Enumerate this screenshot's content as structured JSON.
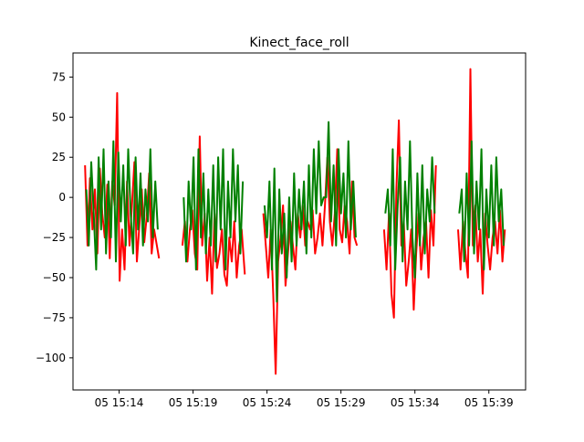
{
  "chart_data": {
    "type": "line",
    "title": "Kinect_face_roll",
    "xlabel": "",
    "ylabel": "",
    "x_axis_type": "time",
    "x_ticks": [
      "05 15:14",
      "05 15:19",
      "05 15:24",
      "05 15:29",
      "05 15:34",
      "05 15:39"
    ],
    "y_ticks": [
      75,
      50,
      25,
      0,
      -25,
      -50,
      -75,
      -100
    ],
    "ylim": [
      -120,
      90
    ],
    "xlim": [
      "15:10:53",
      "15:41:29"
    ],
    "grid": false,
    "legend": "none",
    "series": [
      {
        "color": "#ff0000",
        "segments": [
          {
            "x": [
              "15:11:42",
              "15:11:52",
              "15:12:02",
              "15:12:12",
              "15:12:22",
              "15:12:32",
              "15:12:42",
              "15:12:52",
              "15:13:02",
              "15:13:12",
              "15:13:22",
              "15:13:32",
              "15:13:42",
              "15:13:52",
              "15:14:02",
              "15:14:12",
              "15:14:22",
              "15:14:32",
              "15:14:42",
              "15:14:52",
              "15:15:02",
              "15:15:12",
              "15:15:22",
              "15:15:32",
              "15:15:42",
              "15:15:52",
              "15:16:02",
              "15:16:12",
              "15:16:22",
              "15:16:42"
            ],
            "y": [
              20,
              -30,
              12,
              -20,
              5,
              -35,
              18,
              -10,
              -25,
              8,
              -38,
              10,
              -5,
              65,
              -52,
              -20,
              -45,
              10,
              -30,
              -5,
              22,
              -40,
              -18,
              5,
              -28,
              -12,
              15,
              -35,
              -20,
              -38
            ]
          },
          {
            "x": [
              "15:18:17",
              "15:18:27",
              "15:18:37",
              "15:18:47",
              "15:18:57",
              "15:19:07",
              "15:19:17",
              "15:19:27",
              "15:19:37",
              "15:19:47",
              "15:19:57",
              "15:20:07",
              "15:20:17",
              "15:20:27",
              "15:20:37",
              "15:20:47",
              "15:20:57",
              "15:21:07",
              "15:21:17",
              "15:21:27",
              "15:21:37",
              "15:21:47",
              "15:21:57",
              "15:22:07",
              "15:22:17",
              "15:22:30"
            ],
            "y": [
              -30,
              -15,
              -40,
              -20,
              -8,
              -35,
              -45,
              38,
              -30,
              -10,
              -52,
              -25,
              -60,
              -10,
              -44,
              -35,
              -20,
              -48,
              -55,
              -25,
              -40,
              -15,
              -50,
              -30,
              -20,
              -48
            ]
          },
          {
            "x": [
              "15:23:45",
              "15:23:55",
              "15:24:05",
              "15:24:15",
              "15:24:25",
              "15:24:35",
              "15:24:45",
              "15:24:55",
              "15:25:05",
              "15:25:15",
              "15:25:25",
              "15:25:35",
              "15:25:45",
              "15:25:55",
              "15:26:05",
              "15:26:15",
              "15:26:25",
              "15:26:35",
              "15:26:45",
              "15:26:55",
              "15:27:05",
              "15:27:15",
              "15:27:25",
              "15:27:35",
              "15:27:45",
              "15:27:55",
              "15:28:05",
              "15:28:15",
              "15:28:25",
              "15:28:35",
              "15:28:45",
              "15:28:55",
              "15:29:05",
              "15:29:15",
              "15:29:25",
              "15:29:35",
              "15:29:45",
              "15:29:55",
              "15:30:05"
            ],
            "y": [
              -10,
              -30,
              -50,
              -20,
              -60,
              -110,
              -40,
              -25,
              -5,
              -55,
              -35,
              -15,
              -30,
              -45,
              -10,
              -25,
              -5,
              -30,
              -15,
              -20,
              -8,
              -35,
              -25,
              -10,
              -30,
              -5,
              25,
              -15,
              -30,
              -10,
              30,
              -20,
              -28,
              -5,
              -15,
              -35,
              10,
              -25,
              -30
            ]
          },
          {
            "x": [
              "15:31:55",
              "15:32:05",
              "15:32:15",
              "15:32:25",
              "15:32:35",
              "15:32:45",
              "15:32:55",
              "15:33:05",
              "15:33:15",
              "15:33:25",
              "15:33:35",
              "15:33:45",
              "15:33:55",
              "15:34:05",
              "15:34:15",
              "15:34:25",
              "15:34:35",
              "15:34:45",
              "15:34:55",
              "15:35:05",
              "15:35:15",
              "15:35:25"
            ],
            "y": [
              -20,
              -45,
              -10,
              -60,
              -75,
              5,
              48,
              -30,
              -15,
              -55,
              -40,
              -20,
              -70,
              -35,
              -10,
              -45,
              -25,
              -15,
              -50,
              -8,
              -30,
              20
            ]
          },
          {
            "x": [
              "15:36:55",
              "15:37:05",
              "15:37:15",
              "15:37:25",
              "15:37:35",
              "15:37:45",
              "15:37:55",
              "15:38:05",
              "15:38:15",
              "15:38:25",
              "15:38:35",
              "15:38:45",
              "15:38:55",
              "15:39:05",
              "15:39:15",
              "15:39:25",
              "15:39:35",
              "15:39:45",
              "15:39:55",
              "15:40:05"
            ],
            "y": [
              -20,
              -45,
              -15,
              -35,
              -50,
              80,
              -30,
              -5,
              -40,
              -20,
              -60,
              -10,
              -30,
              -45,
              -25,
              -15,
              -35,
              -8,
              -40,
              -20
            ]
          }
        ]
      },
      {
        "color": "#008000",
        "segments": [
          {
            "x": [
              "15:11:47",
              "15:11:57",
              "15:12:07",
              "15:12:17",
              "15:12:27",
              "15:12:37",
              "15:12:47",
              "15:12:57",
              "15:13:07",
              "15:13:17",
              "15:13:27",
              "15:13:37",
              "15:13:47",
              "15:13:57",
              "15:14:07",
              "15:14:17",
              "15:14:27",
              "15:14:37",
              "15:14:47",
              "15:14:57",
              "15:15:07",
              "15:15:17",
              "15:15:27",
              "15:15:37",
              "15:15:47",
              "15:15:57",
              "15:16:07",
              "15:16:17",
              "15:16:27",
              "15:16:37"
            ],
            "y": [
              5,
              -30,
              22,
              -10,
              -45,
              25,
              -20,
              30,
              -35,
              10,
              -25,
              35,
              -40,
              28,
              -15,
              20,
              -30,
              30,
              -10,
              -35,
              25,
              -20,
              15,
              -30,
              5,
              -15,
              30,
              -25,
              10,
              -20
            ]
          },
          {
            "x": [
              "15:18:22",
              "15:18:32",
              "15:18:42",
              "15:18:52",
              "15:19:02",
              "15:19:12",
              "15:19:22",
              "15:19:32",
              "15:19:42",
              "15:19:52",
              "15:20:02",
              "15:20:12",
              "15:20:22",
              "15:20:32",
              "15:20:42",
              "15:20:52",
              "15:21:02",
              "15:21:12",
              "15:21:22",
              "15:21:32",
              "15:21:42",
              "15:21:52",
              "15:22:02",
              "15:22:12",
              "15:22:22"
            ],
            "y": [
              0,
              -40,
              10,
              -20,
              25,
              -45,
              30,
              -25,
              15,
              -35,
              5,
              -30,
              20,
              -40,
              25,
              -20,
              30,
              -45,
              10,
              -25,
              30,
              -15,
              20,
              -35,
              10
            ]
          },
          {
            "x": [
              "15:23:50",
              "15:24:00",
              "15:24:10",
              "15:24:20",
              "15:24:30",
              "15:24:40",
              "15:24:50",
              "15:25:00",
              "15:25:10",
              "15:25:20",
              "15:25:30",
              "15:25:40",
              "15:25:50",
              "15:26:00",
              "15:26:10",
              "15:26:20",
              "15:26:30",
              "15:26:40",
              "15:26:50",
              "15:27:00",
              "15:27:10",
              "15:27:20",
              "15:27:30",
              "15:27:40",
              "15:27:50",
              "15:28:00",
              "15:28:10",
              "15:28:20",
              "15:28:30",
              "15:28:40",
              "15:28:50",
              "15:29:00",
              "15:29:10",
              "15:29:20",
              "15:29:30",
              "15:29:40",
              "15:29:50",
              "15:30:00"
            ],
            "y": [
              -5,
              -25,
              10,
              -45,
              18,
              -65,
              5,
              -35,
              -10,
              -50,
              0,
              -40,
              15,
              -30,
              5,
              -20,
              10,
              -35,
              20,
              -25,
              30,
              -10,
              35,
              -5,
              0,
              0,
              47,
              -15,
              20,
              -30,
              30,
              -10,
              15,
              -25,
              35,
              -20,
              10,
              -25
            ]
          },
          {
            "x": [
              "15:32:00",
              "15:32:10",
              "15:32:20",
              "15:32:30",
              "15:32:40",
              "15:32:50",
              "15:33:00",
              "15:33:10",
              "15:33:20",
              "15:33:30",
              "15:33:40",
              "15:33:50",
              "15:34:00",
              "15:34:10",
              "15:34:20",
              "15:34:30",
              "15:34:40",
              "15:34:50",
              "15:35:00",
              "15:35:10",
              "15:35:20"
            ],
            "y": [
              -10,
              5,
              -30,
              30,
              -45,
              -5,
              25,
              -40,
              10,
              -20,
              35,
              -25,
              -50,
              15,
              -30,
              20,
              -35,
              5,
              -15,
              25,
              -10
            ]
          },
          {
            "x": [
              "15:37:00",
              "15:37:10",
              "15:37:20",
              "15:37:30",
              "15:37:40",
              "15:37:50",
              "15:38:00",
              "15:38:10",
              "15:38:20",
              "15:38:30",
              "15:38:40",
              "15:38:50",
              "15:39:00",
              "15:39:10",
              "15:39:20",
              "15:39:30",
              "15:39:40",
              "15:39:50",
              "15:40:00"
            ],
            "y": [
              -10,
              5,
              -40,
              15,
              -30,
              35,
              -35,
              10,
              -20,
              30,
              -45,
              5,
              -25,
              20,
              -30,
              25,
              -15,
              5,
              -30
            ]
          }
        ]
      }
    ]
  }
}
